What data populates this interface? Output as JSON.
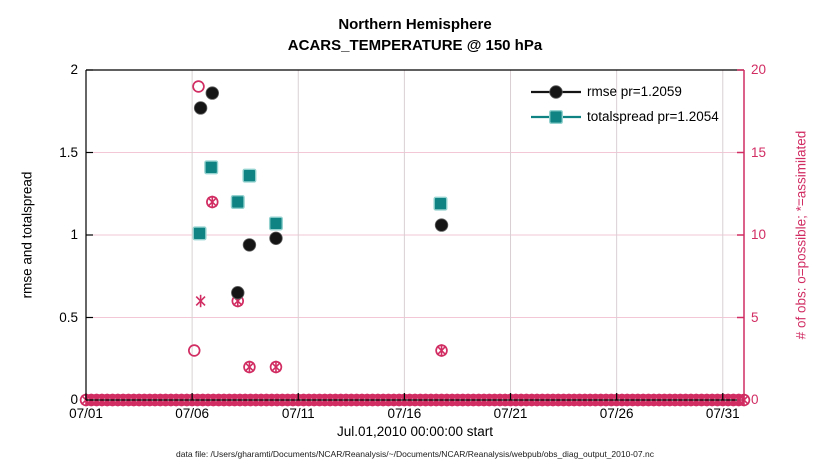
{
  "caption": "data file: /Users/gharamti/Documents/NCAR/Reanalysis/~/Documents/NCAR/Reanalysis/webpub/obs_diag_output_2010-07.nc",
  "legend": {
    "items": [
      {
        "label": "rmse pr=1.2059",
        "marker": "filled-circle",
        "color": "#151515"
      },
      {
        "label": "totalspread pr=1.2054",
        "marker": "filled-square",
        "color": "#0f8383"
      }
    ]
  },
  "colors": {
    "obs_pink": "#d12d63",
    "grid_horizontal": "#f3c7d6",
    "grid_vertical": "#d9d0d3",
    "rmse_black": "#151515",
    "totalspread_teal": "#0f8383",
    "teal_edge": "#93d2cf",
    "axis_black": "#000000"
  },
  "chart_data": {
    "type": "scatter",
    "title": "Northern Hemisphere",
    "subtitle": "ACARS_TEMPERATURE @ 150 hPa",
    "xlabel": "Jul.01,2010 00:00:00 start",
    "ylabel_left": "rmse and totalspread",
    "ylabel_right": "# of obs: o=possible; *=assimilated",
    "x_axis": {
      "range_days": [
        0,
        31
      ],
      "tick_days": [
        0,
        5,
        10,
        15,
        20,
        25,
        30
      ],
      "tick_labels": [
        "07/01",
        "07/06",
        "07/11",
        "07/16",
        "07/21",
        "07/26",
        "07/31"
      ]
    },
    "y_left_axis": {
      "range": [
        0,
        2
      ],
      "ticks": [
        0,
        0.5,
        1,
        1.5,
        2
      ],
      "tick_labels": [
        "0",
        "0.5",
        "1",
        "1.5",
        "2"
      ],
      "grid_at": [
        0.5,
        1,
        1.5
      ]
    },
    "y_right_axis": {
      "range": [
        0,
        20
      ],
      "ticks": [
        0,
        5,
        10,
        15,
        20
      ],
      "tick_labels": [
        "0",
        "5",
        "10",
        "15",
        "20"
      ]
    },
    "series": [
      {
        "name": "rmse pr=1.2059",
        "marker": "filled-circle",
        "color": "#151515",
        "axis": "left",
        "points": [
          [
            5.4,
            1.77
          ],
          [
            5.95,
            1.86
          ],
          [
            7.15,
            0.65
          ],
          [
            7.7,
            0.94
          ],
          [
            8.95,
            0.98
          ],
          [
            16.75,
            1.06
          ]
        ]
      },
      {
        "name": "totalspread pr=1.2054",
        "marker": "filled-square",
        "color": "#0f8383",
        "axis": "left",
        "points": [
          [
            5.35,
            1.01
          ],
          [
            5.9,
            1.41
          ],
          [
            7.15,
            1.2
          ],
          [
            7.7,
            1.36
          ],
          [
            8.95,
            1.07
          ],
          [
            16.7,
            1.19
          ]
        ]
      },
      {
        "name": "possible obs",
        "marker": "open-circle",
        "color": "#d12d63",
        "axis": "right",
        "points": [
          [
            5.1,
            3
          ],
          [
            5.3,
            19
          ],
          [
            5.95,
            12
          ],
          [
            7.15,
            6
          ],
          [
            7.7,
            2
          ],
          [
            8.95,
            2
          ],
          [
            16.75,
            3
          ]
        ]
      },
      {
        "name": "assimilated obs",
        "marker": "asterisk",
        "color": "#d12d63",
        "axis": "right",
        "points": [
          [
            5.4,
            6
          ],
          [
            5.95,
            12
          ],
          [
            7.15,
            6
          ],
          [
            7.7,
            2
          ],
          [
            8.95,
            2
          ],
          [
            16.75,
            3
          ]
        ]
      }
    ],
    "zero_row": {
      "comment": "dense band of possible(o) and assimilated(*) markers at value 0 across whole month",
      "day_start": 0,
      "day_end": 31,
      "day_step": 0.25,
      "value": 0,
      "markers": [
        "open-circle",
        "asterisk"
      ]
    },
    "legend_position": "upper-right-inside",
    "grid": true
  }
}
